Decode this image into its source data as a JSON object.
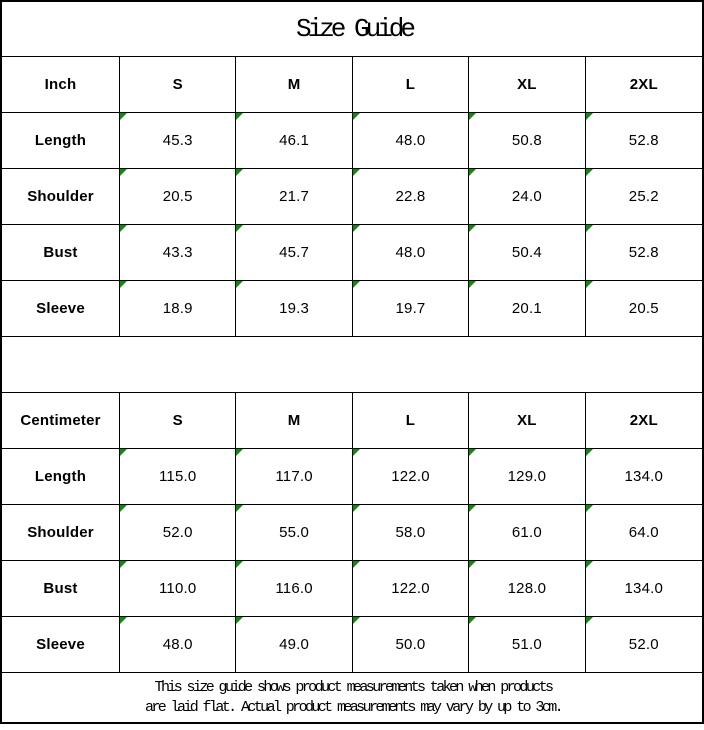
{
  "title": "Size Guide",
  "colors": {
    "border": "#000000",
    "text": "#000000",
    "flag_green": "#0a8f0a",
    "background": "#ffffff"
  },
  "footer": {
    "line1": "This size guide shows product measurements taken when products",
    "line2": "are laid flat. Actual product measurements may vary by up to 3cm."
  },
  "chart_data": [
    {
      "type": "table",
      "unit_header": "Inch",
      "columns": [
        "S",
        "M",
        "L",
        "XL",
        "2XL"
      ],
      "rows": [
        {
          "label": "Length",
          "values": [
            "45.3",
            "46.1",
            "48.0",
            "50.8",
            "52.8"
          ]
        },
        {
          "label": "Shoulder",
          "values": [
            "20.5",
            "21.7",
            "22.8",
            "24.0",
            "25.2"
          ]
        },
        {
          "label": "Bust",
          "values": [
            "43.3",
            "45.7",
            "48.0",
            "50.4",
            "52.8"
          ]
        },
        {
          "label": "Sleeve",
          "values": [
            "18.9",
            "19.3",
            "19.7",
            "20.1",
            "20.5"
          ]
        }
      ]
    },
    {
      "type": "table",
      "unit_header": "Centimeter",
      "columns": [
        "S",
        "M",
        "L",
        "XL",
        "2XL"
      ],
      "rows": [
        {
          "label": "Length",
          "values": [
            "115.0",
            "117.0",
            "122.0",
            "129.0",
            "134.0"
          ]
        },
        {
          "label": "Shoulder",
          "values": [
            "52.0",
            "55.0",
            "58.0",
            "61.0",
            "64.0"
          ]
        },
        {
          "label": "Bust",
          "values": [
            "110.0",
            "116.0",
            "122.0",
            "128.0",
            "134.0"
          ]
        },
        {
          "label": "Sleeve",
          "values": [
            "48.0",
            "49.0",
            "50.0",
            "51.0",
            "52.0"
          ]
        }
      ]
    }
  ]
}
